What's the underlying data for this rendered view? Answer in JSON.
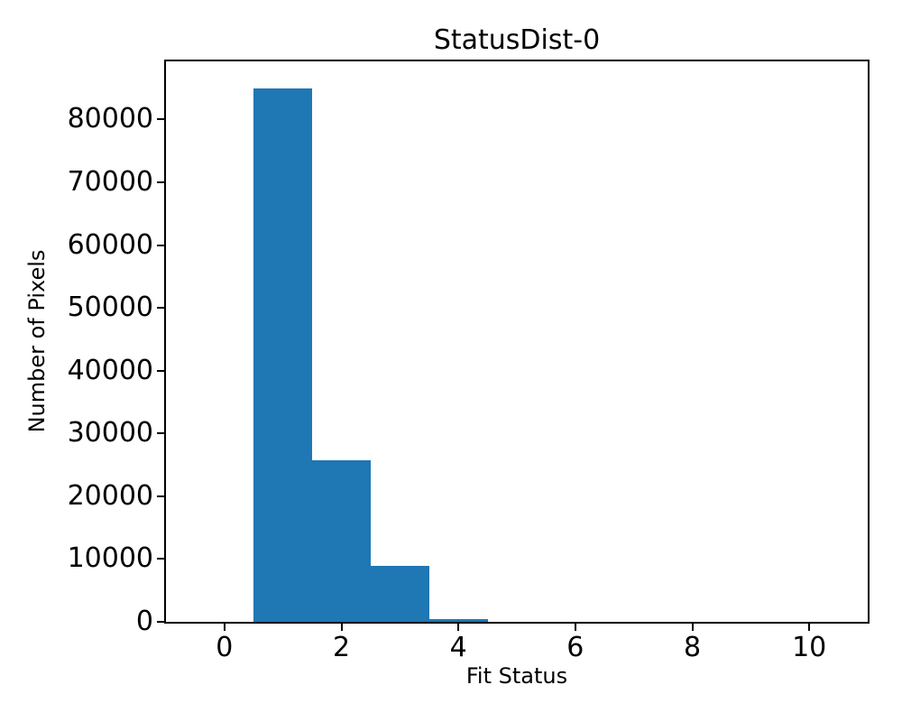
{
  "chart_data": {
    "type": "bar",
    "subtype": "histogram",
    "title": "StatusDist-0",
    "xlabel": "Fit Status",
    "ylabel": "Number of Pixels",
    "xlim": [
      -1,
      11
    ],
    "ylim": [
      0,
      89250
    ],
    "xticks": [
      0,
      2,
      4,
      6,
      8,
      10
    ],
    "yticks": [
      0,
      10000,
      20000,
      30000,
      40000,
      50000,
      60000,
      70000,
      80000
    ],
    "bin_width": 1,
    "bars": [
      {
        "x0": 0.5,
        "x1": 1.5,
        "count": 85000
      },
      {
        "x0": 1.5,
        "x1": 2.5,
        "count": 25700
      },
      {
        "x0": 2.5,
        "x1": 3.5,
        "count": 8900
      },
      {
        "x0": 3.5,
        "x1": 4.5,
        "count": 400
      }
    ],
    "grid": false,
    "legend": false,
    "bar_color": "#1f77b4",
    "axis_color": "#000000",
    "background": "#ffffff"
  }
}
